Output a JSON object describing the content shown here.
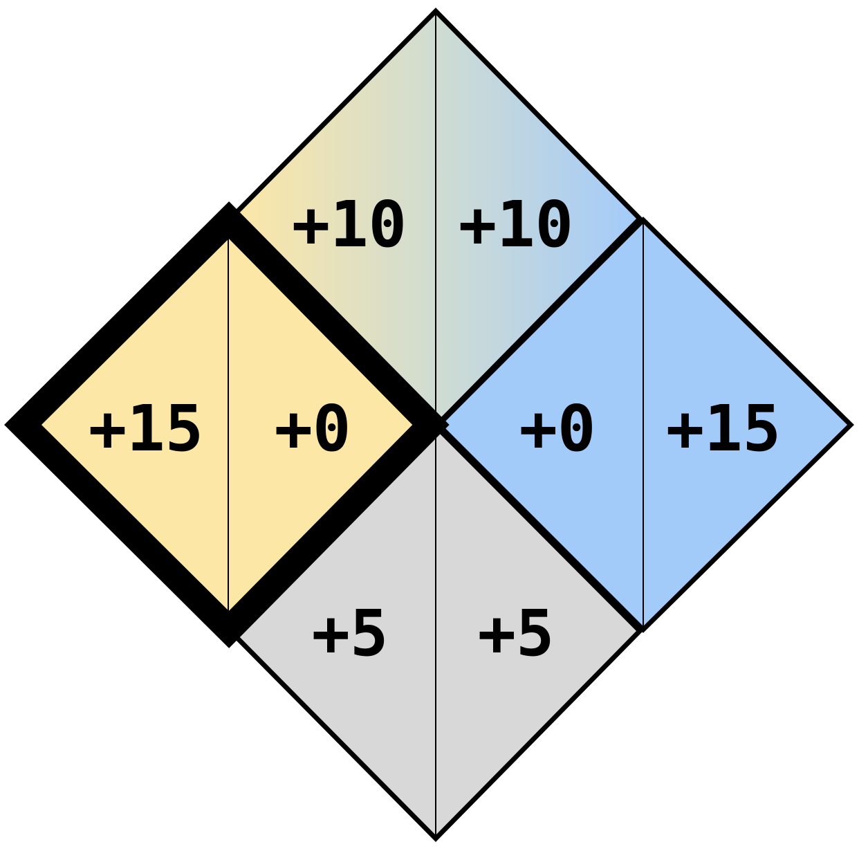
{
  "colors": {
    "gold": "#fde7a6",
    "blue": "#a3cbfa",
    "gray": "#d8d8d8",
    "outline": "#000000",
    "background": "#ffffff"
  },
  "diamonds": [
    {
      "id": "top",
      "fill": "gradient gold-to-blue",
      "left_value": "+10",
      "right_value": "+10"
    },
    {
      "id": "left",
      "fill": "gold",
      "highlighted": true,
      "left_value": "+15",
      "right_value": "+0"
    },
    {
      "id": "right",
      "fill": "blue",
      "left_value": "+0",
      "right_value": "+15"
    },
    {
      "id": "bottom",
      "fill": "gray",
      "left_value": "+5",
      "right_value": "+5"
    }
  ]
}
